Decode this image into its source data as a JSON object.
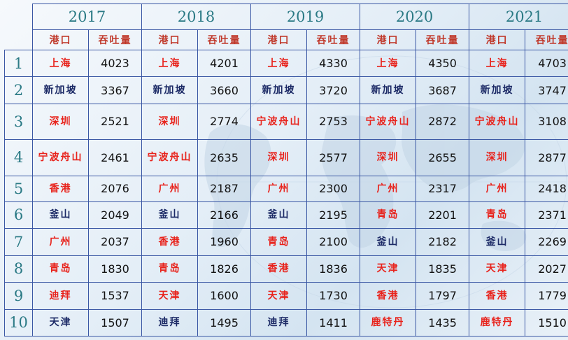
{
  "header": {
    "years": [
      "2017",
      "2018",
      "2019",
      "2020",
      "2021"
    ],
    "port_label": "港口",
    "throughput_label": "吞吐量"
  },
  "colors": {
    "accent_red": "#e8221b",
    "port_blue": "#1c2a66",
    "year_teal": "#2b7a85",
    "border": "#3a57a4"
  },
  "rows": [
    {
      "rank": "1",
      "cells": [
        {
          "port": "上海",
          "value": "4023",
          "color": "red"
        },
        {
          "port": "上海",
          "value": "4201",
          "color": "red"
        },
        {
          "port": "上海",
          "value": "4330",
          "color": "red"
        },
        {
          "port": "上海",
          "value": "4350",
          "color": "red"
        },
        {
          "port": "上海",
          "value": "4703",
          "color": "red"
        }
      ]
    },
    {
      "rank": "2",
      "cells": [
        {
          "port": "新加坡",
          "value": "3367",
          "color": "blue"
        },
        {
          "port": "新加坡",
          "value": "3660",
          "color": "blue"
        },
        {
          "port": "新加坡",
          "value": "3720",
          "color": "blue"
        },
        {
          "port": "新加坡",
          "value": "3687",
          "color": "blue"
        },
        {
          "port": "新加坡",
          "value": "3747",
          "color": "blue"
        }
      ]
    },
    {
      "rank": "3",
      "cells": [
        {
          "port": "深圳",
          "value": "2521",
          "color": "red"
        },
        {
          "port": "深圳",
          "value": "2774",
          "color": "red"
        },
        {
          "port": "宁波舟山",
          "value": "2753",
          "color": "red"
        },
        {
          "port": "宁波舟山",
          "value": "2872",
          "color": "red"
        },
        {
          "port": "宁波舟山",
          "value": "3108",
          "color": "red"
        }
      ]
    },
    {
      "rank": "4",
      "cells": [
        {
          "port": "宁波舟山",
          "value": "2461",
          "color": "red"
        },
        {
          "port": "宁波舟山",
          "value": "2635",
          "color": "red"
        },
        {
          "port": "深圳",
          "value": "2577",
          "color": "red"
        },
        {
          "port": "深圳",
          "value": "2655",
          "color": "red"
        },
        {
          "port": "深圳",
          "value": "2877",
          "color": "red"
        }
      ]
    },
    {
      "rank": "5",
      "cells": [
        {
          "port": "香港",
          "value": "2076",
          "color": "red"
        },
        {
          "port": "广州",
          "value": "2187",
          "color": "red"
        },
        {
          "port": "广州",
          "value": "2300",
          "color": "red"
        },
        {
          "port": "广州",
          "value": "2317",
          "color": "red"
        },
        {
          "port": "广州",
          "value": "2418",
          "color": "red"
        }
      ]
    },
    {
      "rank": "6",
      "cells": [
        {
          "port": "釜山",
          "value": "2049",
          "color": "blue"
        },
        {
          "port": "釜山",
          "value": "2166",
          "color": "blue"
        },
        {
          "port": "釜山",
          "value": "2195",
          "color": "blue"
        },
        {
          "port": "青岛",
          "value": "2201",
          "color": "red"
        },
        {
          "port": "青岛",
          "value": "2371",
          "color": "red"
        }
      ]
    },
    {
      "rank": "7",
      "cells": [
        {
          "port": "广州",
          "value": "2037",
          "color": "red"
        },
        {
          "port": "香港",
          "value": "1960",
          "color": "red"
        },
        {
          "port": "青岛",
          "value": "2100",
          "color": "red"
        },
        {
          "port": "釜山",
          "value": "2182",
          "color": "blue"
        },
        {
          "port": "釜山",
          "value": "2269",
          "color": "blue"
        }
      ]
    },
    {
      "rank": "8",
      "cells": [
        {
          "port": "青岛",
          "value": "1830",
          "color": "red"
        },
        {
          "port": "青岛",
          "value": "1826",
          "color": "red"
        },
        {
          "port": "香港",
          "value": "1836",
          "color": "red"
        },
        {
          "port": "天津",
          "value": "1835",
          "color": "red"
        },
        {
          "port": "天津",
          "value": "2027",
          "color": "red"
        }
      ]
    },
    {
      "rank": "9",
      "cells": [
        {
          "port": "迪拜",
          "value": "1537",
          "color": "red"
        },
        {
          "port": "天津",
          "value": "1600",
          "color": "red"
        },
        {
          "port": "天津",
          "value": "1730",
          "color": "red"
        },
        {
          "port": "香港",
          "value": "1797",
          "color": "red"
        },
        {
          "port": "香港",
          "value": "1779",
          "color": "red"
        }
      ]
    },
    {
      "rank": "10",
      "cells": [
        {
          "port": "天津",
          "value": "1507",
          "color": "blue"
        },
        {
          "port": "迪拜",
          "value": "1495",
          "color": "blue"
        },
        {
          "port": "迪拜",
          "value": "1411",
          "color": "blue"
        },
        {
          "port": "鹿特丹",
          "value": "1435",
          "color": "red"
        },
        {
          "port": "鹿特丹",
          "value": "1510",
          "color": "red"
        }
      ]
    }
  ]
}
